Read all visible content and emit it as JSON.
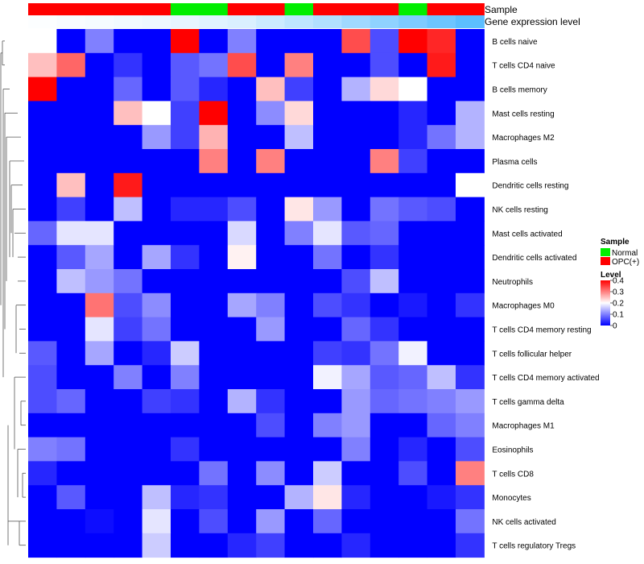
{
  "chart_data": {
    "type": "heatmap",
    "annotation_labels": {
      "sample": "Sample",
      "gene": "Gene expression level"
    },
    "sample_groups": [
      "OPC",
      "OPC",
      "OPC",
      "OPC",
      "OPC",
      "Normal",
      "Normal",
      "OPC",
      "OPC",
      "Normal",
      "OPC",
      "OPC",
      "OPC",
      "Normal",
      "OPC",
      "OPC"
    ],
    "gene_expression": [
      0.02,
      0.04,
      0.06,
      0.08,
      0.1,
      0.14,
      0.18,
      0.22,
      0.3,
      0.38,
      0.46,
      0.56,
      0.66,
      0.76,
      0.86,
      0.96
    ],
    "rows": [
      "B cells naive",
      "T cells CD4 naive",
      "B cells memory",
      "Mast cells resting",
      "Macrophages M2",
      "Plasma cells",
      "Dendritic cells resting",
      "NK cells resting",
      "Mast cells activated",
      "Dendritic cells activated",
      "Neutrophils",
      "Macrophages M0",
      "T cells CD4 memory resting",
      "T cells follicular helper",
      "T cells CD4 memory activated",
      "T cells gamma delta",
      "Macrophages M1",
      "Eosinophils",
      "T cells CD8",
      "Monocytes",
      "NK cells activated",
      "T cells regulatory  Tregs"
    ],
    "values": [
      [
        0.2,
        0.0,
        0.1,
        0.0,
        0.0,
        0.4,
        0.0,
        0.1,
        0.0,
        0.0,
        0.0,
        0.34,
        0.06,
        0.4,
        0.37,
        0.0
      ],
      [
        0.25,
        0.32,
        0.0,
        0.04,
        0.0,
        0.07,
        0.09,
        0.34,
        0.0,
        0.3,
        0.0,
        0.0,
        0.06,
        0.0,
        0.38,
        0.0
      ],
      [
        0.4,
        0.0,
        0.0,
        0.08,
        0.0,
        0.07,
        0.03,
        0.0,
        0.25,
        0.05,
        0.0,
        0.14,
        0.23,
        0.2,
        0.0,
        0.0
      ],
      [
        0.0,
        0.0,
        0.0,
        0.25,
        0.2,
        0.05,
        0.4,
        0.0,
        0.11,
        0.23,
        0.0,
        0.0,
        0.0,
        0.03,
        0.0,
        0.14
      ],
      [
        0.0,
        0.0,
        0.0,
        0.0,
        0.12,
        0.05,
        0.26,
        0.0,
        0.0,
        0.15,
        0.0,
        0.0,
        0.0,
        0.03,
        0.09,
        0.14
      ],
      [
        0.0,
        0.0,
        0.0,
        0.0,
        0.0,
        0.0,
        0.3,
        0.0,
        0.3,
        0.0,
        0.0,
        0.0,
        0.3,
        0.05,
        0.0,
        0.0
      ],
      [
        0.0,
        0.25,
        0.0,
        0.38,
        0.0,
        0.0,
        0.0,
        0.0,
        0.0,
        0.0,
        0.0,
        0.0,
        0.0,
        0.0,
        0.0,
        0.2
      ],
      [
        0.0,
        0.05,
        0.0,
        0.15,
        0.0,
        0.03,
        0.03,
        0.06,
        0.0,
        0.22,
        0.12,
        0.0,
        0.09,
        0.07,
        0.06,
        0.0
      ],
      [
        0.08,
        0.18,
        0.18,
        0.0,
        0.0,
        0.0,
        0.0,
        0.17,
        0.0,
        0.1,
        0.18,
        0.07,
        0.08,
        0.0,
        0.0,
        0.0
      ],
      [
        0.0,
        0.07,
        0.13,
        0.0,
        0.13,
        0.04,
        0.0,
        0.21,
        0.0,
        0.0,
        0.09,
        0.0,
        0.04,
        0.0,
        0.0,
        0.0
      ],
      [
        0.0,
        0.15,
        0.12,
        0.09,
        0.0,
        0.0,
        0.0,
        0.0,
        0.0,
        0.0,
        0.0,
        0.06,
        0.15,
        0.0,
        0.0,
        0.0
      ],
      [
        0.0,
        0.0,
        0.31,
        0.06,
        0.11,
        0.0,
        0.0,
        0.13,
        0.1,
        0.0,
        0.06,
        0.04,
        0.0,
        0.02,
        0.0,
        0.04
      ],
      [
        0.0,
        0.0,
        0.18,
        0.05,
        0.09,
        0.0,
        0.0,
        0.0,
        0.12,
        0.0,
        0.0,
        0.08,
        0.04,
        0.0,
        0.0,
        0.0
      ],
      [
        0.07,
        0.0,
        0.13,
        0.0,
        0.03,
        0.16,
        0.0,
        0.0,
        0.0,
        0.0,
        0.05,
        0.04,
        0.09,
        0.19,
        0.0,
        0.0
      ],
      [
        0.06,
        0.0,
        0.0,
        0.1,
        0.0,
        0.1,
        0.0,
        0.0,
        0.0,
        0.0,
        0.19,
        0.13,
        0.07,
        0.08,
        0.15,
        0.04
      ],
      [
        0.06,
        0.08,
        0.0,
        0.0,
        0.05,
        0.04,
        0.0,
        0.14,
        0.04,
        0.0,
        0.0,
        0.12,
        0.08,
        0.09,
        0.1,
        0.12
      ],
      [
        0.0,
        0.0,
        0.0,
        0.0,
        0.0,
        0.0,
        0.0,
        0.0,
        0.06,
        0.0,
        0.1,
        0.12,
        0.0,
        0.0,
        0.08,
        0.1
      ],
      [
        0.1,
        0.09,
        0.0,
        0.0,
        0.0,
        0.04,
        0.0,
        0.0,
        0.0,
        0.0,
        0.0,
        0.1,
        0.0,
        0.03,
        0.0,
        0.06
      ],
      [
        0.03,
        0.0,
        0.0,
        0.0,
        0.0,
        0.0,
        0.09,
        0.0,
        0.11,
        0.0,
        0.16,
        0.0,
        0.0,
        0.06,
        0.0,
        0.3
      ],
      [
        0.0,
        0.07,
        0.0,
        0.0,
        0.15,
        0.03,
        0.04,
        0.0,
        0.0,
        0.14,
        0.22,
        0.03,
        0.0,
        0.0,
        0.02,
        0.04
      ],
      [
        0.0,
        0.0,
        0.01,
        0.0,
        0.18,
        0.0,
        0.06,
        0.0,
        0.12,
        0.0,
        0.08,
        0.0,
        0.0,
        0.0,
        0.0,
        0.09
      ],
      [
        0.0,
        0.0,
        0.0,
        0.0,
        0.16,
        0.0,
        0.0,
        0.03,
        0.05,
        0.0,
        0.0,
        0.03,
        0.0,
        0.0,
        0.0,
        0.04
      ]
    ],
    "color_scale": {
      "min": 0,
      "max": 0.4,
      "colors": [
        "#0000ff",
        "#ffffff",
        "#ff0000"
      ]
    },
    "legend": {
      "sample_title": "Sample",
      "sample_entries": [
        {
          "label": "Normal",
          "color": "#00ee00"
        },
        {
          "label": "OPC(+)",
          "color": "#ff0000"
        }
      ],
      "level_title": "Level",
      "level_ticks": [
        "0.4",
        "0.3",
        "0.2",
        "0.1",
        "0"
      ],
      "level_tick_values": [
        0.4,
        0.3,
        0.2,
        0.1,
        0
      ]
    },
    "annotation_colors": {
      "Normal": "#00ee00",
      "OPC": "#ff0000",
      "gene_low": "#ffffff",
      "gene_high": "#55bbff"
    }
  }
}
